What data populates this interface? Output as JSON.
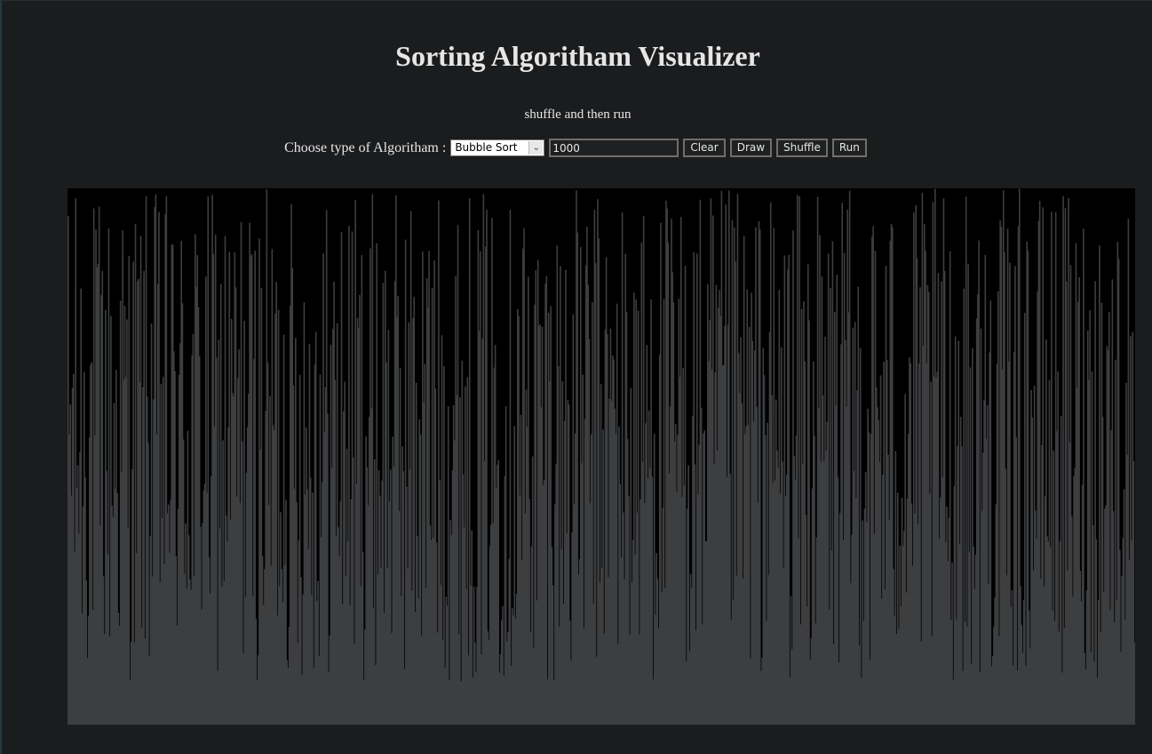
{
  "title": "Sorting Algoritham Visualizer",
  "hint": "shuffle and then run",
  "controls": {
    "label": "Choose type of Algoritham :",
    "algorithm_selected": "Bubble Sort",
    "count_value": "1000",
    "clear_label": "Clear",
    "draw_label": "Draw",
    "shuffle_label": "Shuffle",
    "run_label": "Run"
  },
  "colors": {
    "background": "#1b1c1e",
    "canvas": "#000000",
    "bar": "#3d3e40"
  },
  "chart_data": {
    "type": "bar",
    "count": 1000,
    "state": "shuffled",
    "ylim": [
      0,
      1
    ]
  }
}
